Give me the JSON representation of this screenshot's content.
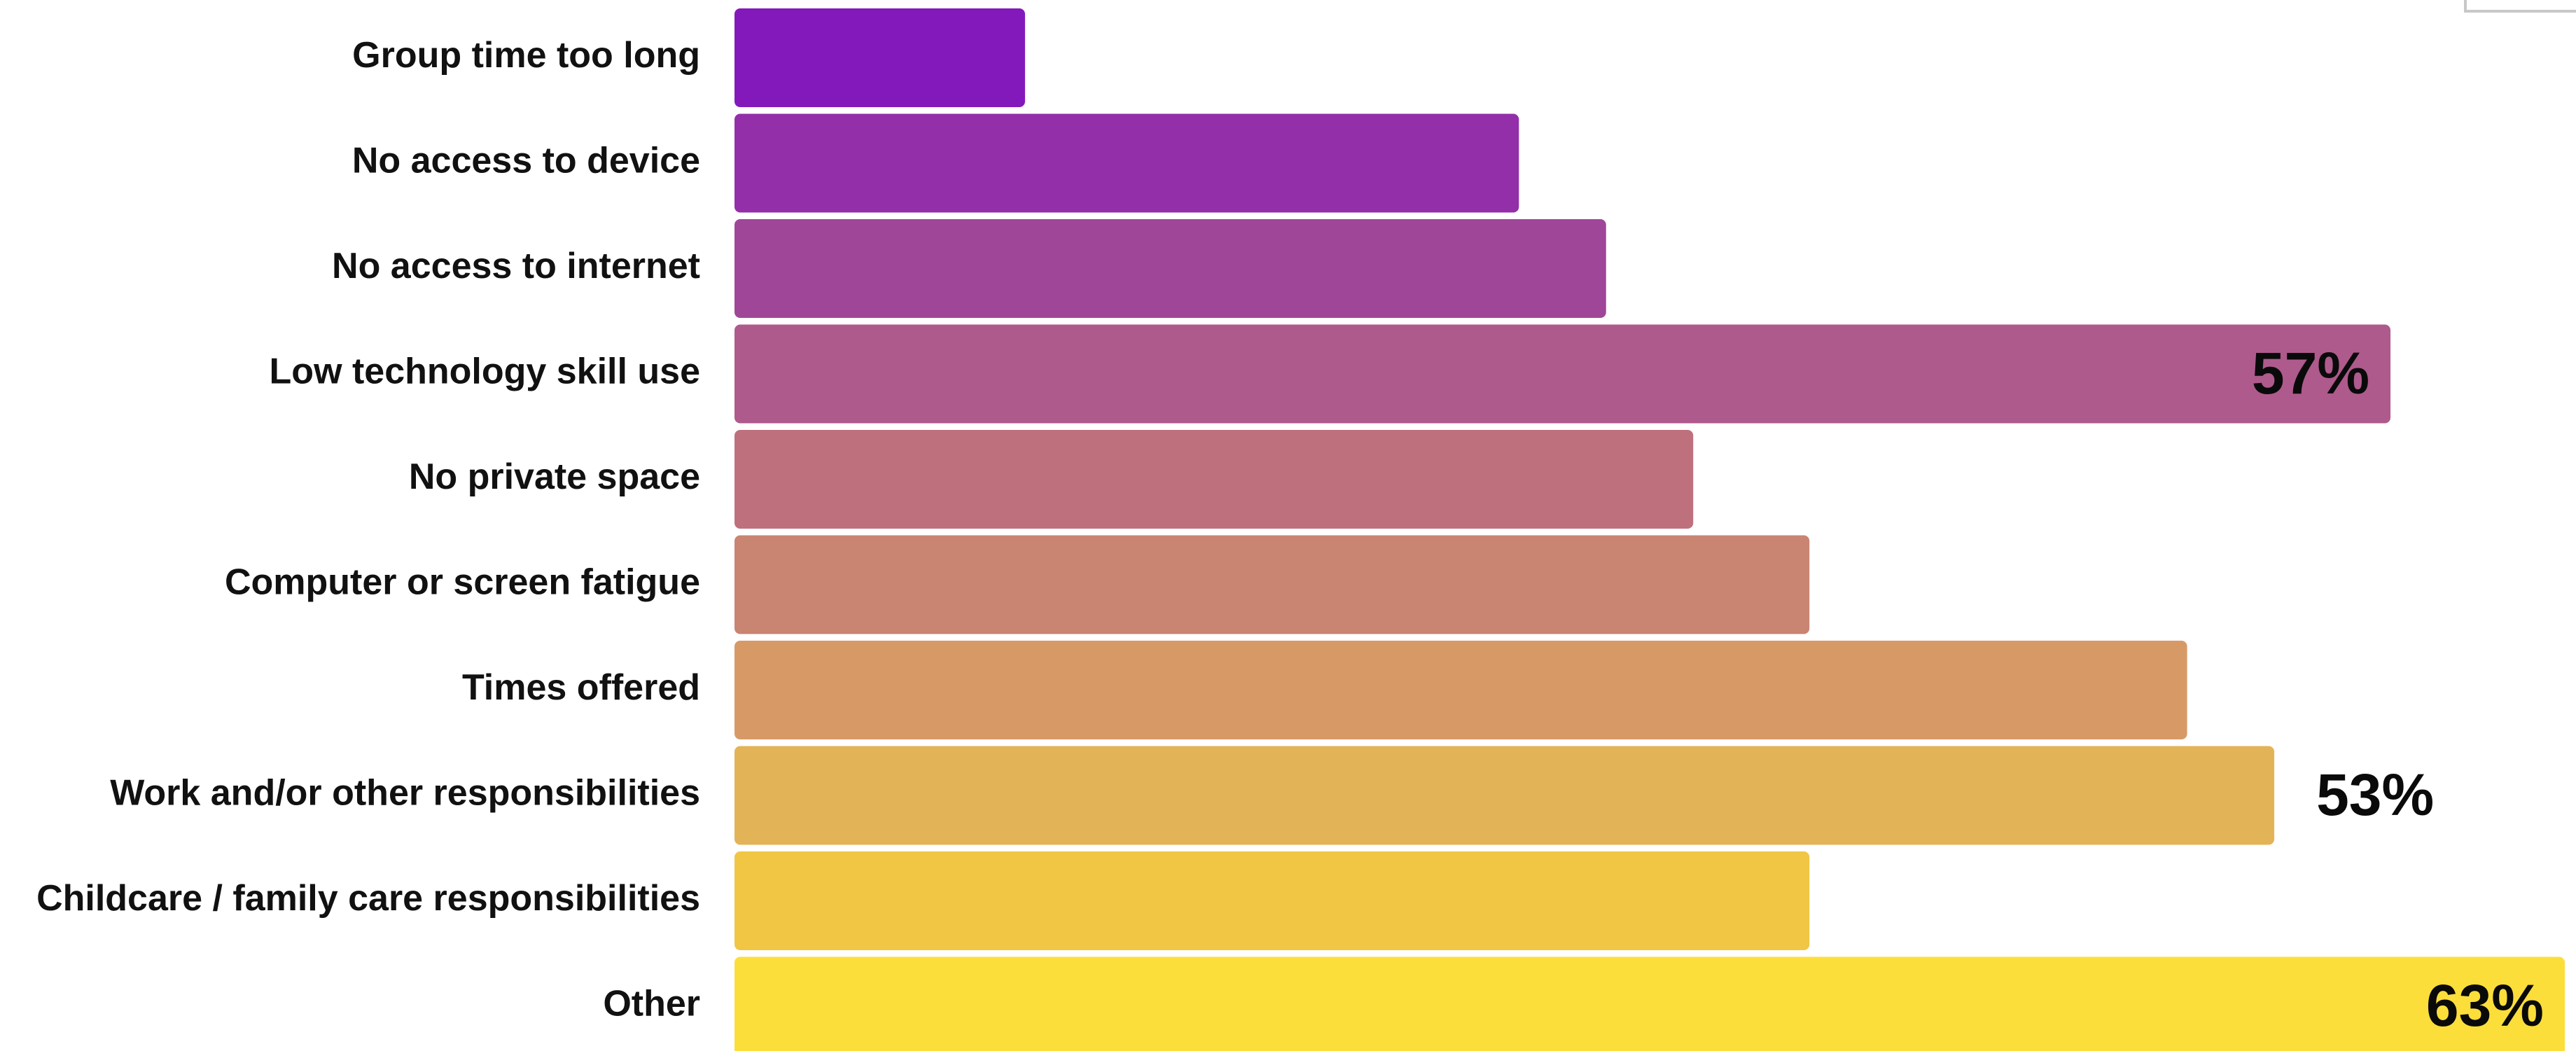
{
  "chart_data": {
    "type": "bar",
    "orientation": "horizontal",
    "title": "",
    "xlabel": "",
    "ylabel": "",
    "categories": [
      "Group time too long",
      "No access to device",
      "No access to internet",
      "Low technology skill use",
      "No private space",
      "Computer or screen fatigue",
      "Times offered",
      "Work and/or other responsibilities",
      "Childcare / family care responsibilities",
      "Other"
    ],
    "values": [
      10,
      27,
      30,
      57,
      33,
      37,
      50,
      53,
      37,
      63
    ],
    "data_labels": [
      "",
      "",
      "",
      "57%",
      "",
      "",
      "",
      "53%",
      "",
      "63%"
    ],
    "colors": [
      "#8419bb",
      "#932fa9",
      "#a04699",
      "#ae5a8c",
      "#be707d",
      "#c98472",
      "#d79a66",
      "#e3b357",
      "#f1c645",
      "#fcde3a"
    ],
    "xlim": [
      0,
      63
    ],
    "grid": false,
    "legend": "none"
  }
}
